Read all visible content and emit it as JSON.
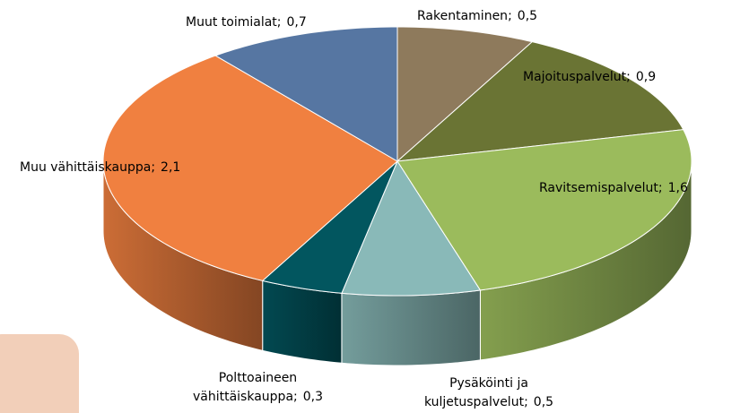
{
  "chart_data": {
    "type": "pie3d",
    "categories": [
      "Rakentaminen",
      "Majoituspalvelut",
      "Ravitsemispalvelut",
      "Pysäköinti ja kuljetuspalvelut",
      "Polttoaineen vähittäiskauppa",
      "Muu vähittäiskauppa",
      "Muut toimialat"
    ],
    "values": [
      0.5,
      0.9,
      1.6,
      0.5,
      0.3,
      2.1,
      0.7
    ],
    "value_labels": [
      "0,5",
      "0,9",
      "1,6",
      "0,5",
      "0,3",
      "2,1",
      "0,7"
    ],
    "separator": ";",
    "colors": [
      "#8e7a5c",
      "#6a7434",
      "#9bbb5c",
      "#89b9b8",
      "#02565f",
      "#f08040",
      "#5676a2"
    ]
  }
}
